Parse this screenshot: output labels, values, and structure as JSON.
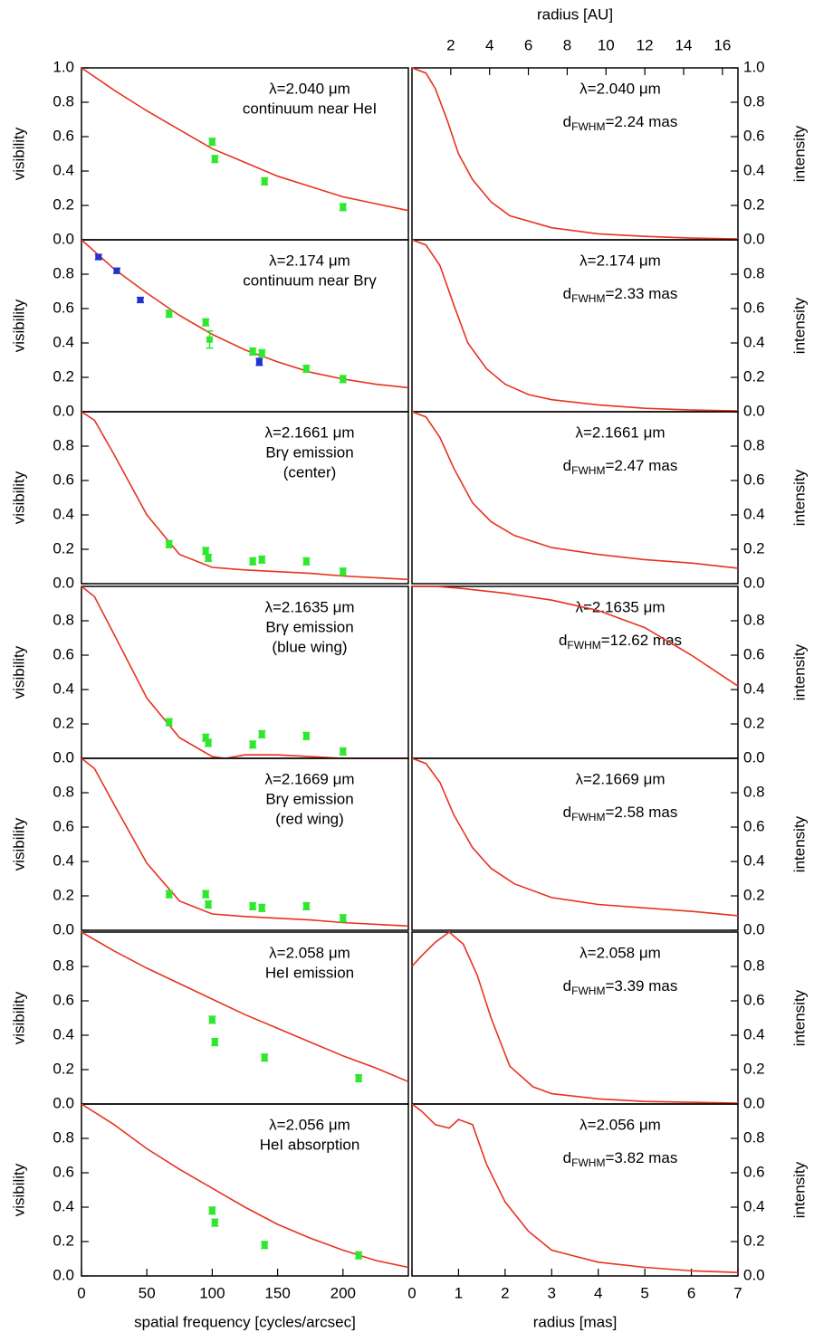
{
  "chart_data": [
    {
      "type": "line",
      "ylabel": "visibility",
      "annotations": [
        "λ=2.040 μm",
        "continuum near HeI"
      ],
      "xlim": [
        0,
        250
      ],
      "ylim": [
        0,
        1
      ],
      "yticks": [
        {
          "value": 0,
          "label": "0.0"
        },
        0.2,
        0.4,
        0.6,
        0.8,
        {
          "value": 1,
          "label": "1.0"
        }
      ],
      "series": [
        {
          "type": "line",
          "color": "#e8321e",
          "x": [
            0,
            25,
            50,
            75,
            100,
            125,
            150,
            175,
            200,
            225,
            250
          ],
          "values": [
            1.0,
            0.87,
            0.75,
            0.64,
            0.53,
            0.45,
            0.37,
            0.31,
            0.25,
            0.21,
            0.17
          ]
        },
        {
          "type": "errorbar",
          "color": "#2ee82e",
          "x": [
            100,
            102,
            140,
            200
          ],
          "values": [
            0.57,
            0.47,
            0.34,
            0.19
          ],
          "errors": [
            0.02,
            0.02,
            0.02,
            0.02
          ]
        }
      ]
    },
    {
      "type": "line",
      "ylabel": "intensity",
      "annotations": [
        "λ=2.040 μm",
        [
          "d",
          "FWHM",
          "=2.24 mas"
        ]
      ],
      "xlim": [
        0,
        7
      ],
      "ylim": [
        0,
        1
      ],
      "yticks": [
        {
          "value": 0,
          "label": "0.0"
        },
        0.2,
        0.4,
        0.6,
        0.8,
        {
          "value": 1,
          "label": "1.0"
        }
      ],
      "x2label": "radius [AU]",
      "x2lim": [
        0,
        16.8
      ],
      "x2ticks": [
        2,
        4,
        6,
        8,
        10,
        12,
        14,
        16
      ],
      "series": [
        {
          "type": "line",
          "color": "#e8321e",
          "x": [
            0,
            0.3,
            0.5,
            0.75,
            1.0,
            1.3,
            1.7,
            2.1,
            3,
            4,
            5,
            6,
            7
          ],
          "values": [
            1.0,
            0.97,
            0.88,
            0.7,
            0.5,
            0.35,
            0.22,
            0.14,
            0.07,
            0.035,
            0.02,
            0.01,
            0.005
          ]
        }
      ]
    },
    {
      "type": "line",
      "ylabel": "visibility",
      "annotations": [
        "λ=2.174 μm",
        "continuum near Brγ"
      ],
      "xlim": [
        0,
        250
      ],
      "ylim": [
        0,
        1
      ],
      "yticks": [
        {
          "value": 0,
          "label": "0.0"
        },
        0.2,
        0.4,
        0.6,
        0.8
      ],
      "series": [
        {
          "type": "line",
          "color": "#e8321e",
          "x": [
            0,
            25,
            50,
            75,
            100,
            125,
            150,
            175,
            200,
            225,
            250
          ],
          "values": [
            1.0,
            0.83,
            0.69,
            0.56,
            0.45,
            0.36,
            0.29,
            0.23,
            0.19,
            0.16,
            0.14
          ]
        },
        {
          "type": "errorbar",
          "color": "#2ee82e",
          "x": [
            67,
            95,
            98,
            131,
            138,
            172,
            200
          ],
          "values": [
            0.57,
            0.52,
            0.42,
            0.35,
            0.34,
            0.25,
            0.19
          ],
          "errors": [
            0.02,
            0.02,
            0.05,
            0.02,
            0.02,
            0.02,
            0.02
          ]
        },
        {
          "type": "errorbar",
          "color": "#2233cc",
          "x": [
            13,
            27,
            45,
            136
          ],
          "values": [
            0.9,
            0.82,
            0.65,
            0.29
          ],
          "errors": [
            0.015,
            0.015,
            0.015,
            0.02
          ]
        }
      ]
    },
    {
      "type": "line",
      "ylabel": "intensity",
      "annotations": [
        "λ=2.174 μm",
        [
          "d",
          "FWHM",
          "=2.33 mas"
        ]
      ],
      "xlim": [
        0,
        7
      ],
      "ylim": [
        0,
        1
      ],
      "yticks": [
        {
          "value": 0,
          "label": "0.0"
        },
        0.2,
        0.4,
        0.6,
        0.8
      ],
      "series": [
        {
          "type": "line",
          "color": "#e8321e",
          "x": [
            0,
            0.3,
            0.6,
            0.9,
            1.2,
            1.6,
            2,
            2.5,
            3,
            4,
            5,
            6,
            7
          ],
          "values": [
            1.0,
            0.97,
            0.85,
            0.62,
            0.4,
            0.25,
            0.16,
            0.1,
            0.07,
            0.04,
            0.02,
            0.01,
            0.005
          ]
        }
      ]
    },
    {
      "type": "line",
      "ylabel": "visibility",
      "annotations": [
        "λ=2.1661 μm",
        "Brγ emission",
        "(center)"
      ],
      "xlim": [
        0,
        250
      ],
      "ylim": [
        0,
        1
      ],
      "yticks": [
        {
          "value": 0,
          "label": "0.0"
        },
        0.2,
        0.4,
        0.6,
        0.8
      ],
      "series": [
        {
          "type": "line",
          "color": "#e8321e",
          "x": [
            0,
            10,
            25,
            50,
            75,
            100,
            125,
            150,
            175,
            200,
            225,
            250
          ],
          "values": [
            1.0,
            0.95,
            0.75,
            0.4,
            0.17,
            0.095,
            0.08,
            0.07,
            0.06,
            0.045,
            0.035,
            0.025
          ]
        },
        {
          "type": "errorbar",
          "color": "#2ee82e",
          "x": [
            67,
            95,
            97,
            131,
            138,
            172,
            200
          ],
          "values": [
            0.23,
            0.19,
            0.15,
            0.13,
            0.14,
            0.13,
            0.07
          ],
          "errors": [
            0.02,
            0.02,
            0.02,
            0.02,
            0.02,
            0.02,
            0.02
          ]
        }
      ]
    },
    {
      "type": "line",
      "ylabel": "intensity",
      "annotations": [
        "λ=2.1661 μm",
        [
          "d",
          "FWHM",
          "=2.47 mas"
        ]
      ],
      "xlim": [
        0,
        7
      ],
      "ylim": [
        0,
        1
      ],
      "yticks": [
        {
          "value": 0,
          "label": "0.0"
        },
        0.2,
        0.4,
        0.6,
        0.8
      ],
      "series": [
        {
          "type": "line",
          "color": "#e8321e",
          "x": [
            0,
            0.3,
            0.6,
            0.9,
            1.3,
            1.7,
            2.2,
            3,
            4,
            5,
            6,
            7
          ],
          "values": [
            1.0,
            0.97,
            0.85,
            0.67,
            0.47,
            0.36,
            0.28,
            0.21,
            0.17,
            0.14,
            0.12,
            0.09
          ]
        }
      ]
    },
    {
      "type": "line",
      "ylabel": "visibility",
      "annotations": [
        "λ=2.1635 μm",
        "Brγ emission",
        "(blue wing)"
      ],
      "xlim": [
        0,
        250
      ],
      "ylim": [
        0,
        1
      ],
      "yticks": [
        {
          "value": 0,
          "label": "0.0"
        },
        0.2,
        0.4,
        0.6,
        0.8
      ],
      "series": [
        {
          "type": "line",
          "color": "#e8321e",
          "x": [
            0,
            10,
            25,
            50,
            75,
            100,
            110,
            125,
            150,
            175,
            200,
            225,
            250
          ],
          "values": [
            1.0,
            0.94,
            0.72,
            0.35,
            0.12,
            0.01,
            0,
            0.02,
            0.02,
            0.01,
            0,
            0,
            0
          ]
        },
        {
          "type": "errorbar",
          "color": "#2ee82e",
          "x": [
            67,
            95,
            97,
            131,
            138,
            172,
            200
          ],
          "values": [
            0.21,
            0.12,
            0.09,
            0.08,
            0.14,
            0.13,
            0.04
          ],
          "errors": [
            0.02,
            0.02,
            0.02,
            0.02,
            0.02,
            0.02,
            0.02
          ]
        }
      ]
    },
    {
      "type": "line",
      "ylabel": "intensity",
      "annotations": [
        "λ=2.1635 μm",
        [
          "d",
          "FWHM",
          "=12.62 mas"
        ]
      ],
      "xlim": [
        0,
        7
      ],
      "ylim": [
        0,
        1
      ],
      "yticks": [
        {
          "value": 0,
          "label": "0.0"
        },
        0.2,
        0.4,
        0.6,
        0.8
      ],
      "series": [
        {
          "type": "line",
          "color": "#e8321e",
          "x": [
            0,
            0.5,
            1,
            2,
            3,
            4,
            5,
            6,
            7
          ],
          "values": [
            1.0,
            1.0,
            0.99,
            0.96,
            0.92,
            0.86,
            0.76,
            0.6,
            0.42
          ]
        }
      ]
    },
    {
      "type": "line",
      "ylabel": "visibility",
      "annotations": [
        "λ=2.1669 μm",
        "Brγ emission",
        "(red wing)"
      ],
      "xlim": [
        0,
        250
      ],
      "ylim": [
        0,
        1
      ],
      "yticks": [
        {
          "value": 0,
          "label": "0.0"
        },
        0.2,
        0.4,
        0.6,
        0.8
      ],
      "series": [
        {
          "type": "line",
          "color": "#e8321e",
          "x": [
            0,
            10,
            25,
            50,
            75,
            100,
            125,
            150,
            175,
            200,
            225,
            250
          ],
          "values": [
            1.0,
            0.94,
            0.73,
            0.39,
            0.17,
            0.095,
            0.08,
            0.07,
            0.06,
            0.045,
            0.035,
            0.025
          ]
        },
        {
          "type": "errorbar",
          "color": "#2ee82e",
          "x": [
            67,
            95,
            97,
            131,
            138,
            172,
            200
          ],
          "values": [
            0.21,
            0.21,
            0.15,
            0.14,
            0.13,
            0.14,
            0.07
          ],
          "errors": [
            0.02,
            0.02,
            0.02,
            0.02,
            0.02,
            0.02,
            0.02
          ]
        }
      ]
    },
    {
      "type": "line",
      "ylabel": "intensity",
      "annotations": [
        "λ=2.1669 μm",
        [
          "d",
          "FWHM",
          "=2.58 mas"
        ]
      ],
      "xlim": [
        0,
        7
      ],
      "ylim": [
        0,
        1
      ],
      "yticks": [
        {
          "value": 0,
          "label": "0.0"
        },
        0.2,
        0.4,
        0.6,
        0.8
      ],
      "series": [
        {
          "type": "line",
          "color": "#e8321e",
          "x": [
            0,
            0.3,
            0.6,
            0.9,
            1.3,
            1.7,
            2.2,
            3,
            4,
            5,
            6,
            7
          ],
          "values": [
            1.0,
            0.97,
            0.86,
            0.67,
            0.48,
            0.36,
            0.27,
            0.19,
            0.15,
            0.13,
            0.11,
            0.085
          ]
        }
      ]
    },
    {
      "type": "line",
      "ylabel": "visibility",
      "annotations": [
        "λ=2.058 μm",
        "HeI emission"
      ],
      "xlim": [
        0,
        250
      ],
      "ylim": [
        0,
        1
      ],
      "yticks": [
        {
          "value": 0,
          "label": "0.0"
        },
        0.2,
        0.4,
        0.6,
        0.8
      ],
      "series": [
        {
          "type": "line",
          "color": "#e8321e",
          "x": [
            0,
            25,
            50,
            75,
            100,
            125,
            150,
            175,
            200,
            225,
            250
          ],
          "values": [
            1.0,
            0.89,
            0.79,
            0.7,
            0.61,
            0.52,
            0.44,
            0.36,
            0.28,
            0.21,
            0.13
          ]
        },
        {
          "type": "errorbar",
          "color": "#2ee82e",
          "x": [
            100,
            102,
            140,
            212
          ],
          "values": [
            0.49,
            0.36,
            0.27,
            0.15
          ],
          "errors": [
            0.02,
            0.02,
            0.02,
            0.02
          ]
        }
      ]
    },
    {
      "type": "line",
      "ylabel": "intensity",
      "annotations": [
        "λ=2.058 μm",
        [
          "d",
          "FWHM",
          "=3.39 mas"
        ]
      ],
      "xlim": [
        0,
        7
      ],
      "ylim": [
        0,
        1
      ],
      "yticks": [
        {
          "value": 0,
          "label": "0.0"
        },
        0.2,
        0.4,
        0.6,
        0.8
      ],
      "series": [
        {
          "type": "line",
          "color": "#e8321e",
          "x": [
            0,
            0.2,
            0.5,
            0.8,
            1.1,
            1.4,
            1.7,
            2.1,
            2.6,
            3,
            4,
            5,
            6,
            7
          ],
          "values": [
            0.8,
            0.86,
            0.94,
            1.0,
            0.93,
            0.75,
            0.5,
            0.22,
            0.1,
            0.06,
            0.03,
            0.015,
            0.01,
            0.005
          ]
        }
      ]
    },
    {
      "type": "line",
      "ylabel": "visibility",
      "annotations": [
        "λ=2.056 μm",
        "HeI absorption"
      ],
      "xlim": [
        0,
        250
      ],
      "ylim": [
        0,
        1
      ],
      "yticks": [
        {
          "value": 0,
          "label": "0.0"
        },
        0.2,
        0.4,
        0.6,
        0.8
      ],
      "xlabel": "spatial frequency [cycles/arcsec]",
      "xticks": [
        0,
        50,
        100,
        150,
        200
      ],
      "series": [
        {
          "type": "line",
          "color": "#e8321e",
          "x": [
            0,
            25,
            50,
            75,
            100,
            125,
            150,
            175,
            200,
            225,
            250
          ],
          "values": [
            1.0,
            0.88,
            0.74,
            0.62,
            0.51,
            0.4,
            0.3,
            0.22,
            0.15,
            0.09,
            0.05
          ]
        },
        {
          "type": "errorbar",
          "color": "#2ee82e",
          "x": [
            100,
            102,
            140,
            212
          ],
          "values": [
            0.38,
            0.31,
            0.18,
            0.12
          ],
          "errors": [
            0.02,
            0.02,
            0.02,
            0.02
          ]
        }
      ]
    },
    {
      "type": "line",
      "ylabel": "intensity",
      "annotations": [
        "λ=2.056 μm",
        [
          "d",
          "FWHM",
          "=3.82 mas"
        ]
      ],
      "xlim": [
        0,
        7
      ],
      "ylim": [
        0,
        1
      ],
      "yticks": [
        {
          "value": 0,
          "label": "0.0"
        },
        0.2,
        0.4,
        0.6,
        0.8
      ],
      "xlabel": "radius [mas]",
      "xticks": [
        0,
        1,
        2,
        3,
        4,
        5,
        6,
        7
      ],
      "series": [
        {
          "type": "line",
          "color": "#e8321e",
          "x": [
            0,
            0.2,
            0.5,
            0.8,
            1.0,
            1.3,
            1.6,
            2,
            2.5,
            3,
            4,
            5,
            6,
            7
          ],
          "values": [
            1.0,
            0.96,
            0.88,
            0.86,
            0.91,
            0.88,
            0.65,
            0.43,
            0.26,
            0.15,
            0.08,
            0.05,
            0.03,
            0.02
          ]
        }
      ]
    }
  ]
}
